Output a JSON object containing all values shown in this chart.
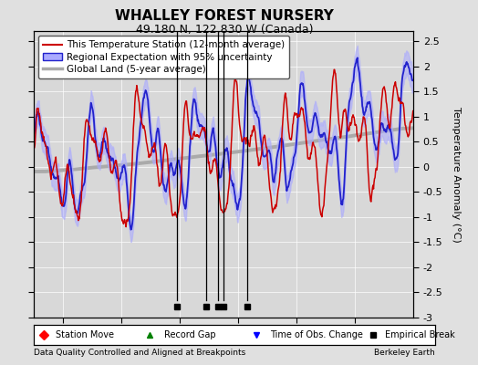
{
  "title": "WHALLEY FOREST NURSERY",
  "subtitle": "49.180 N, 122.830 W (Canada)",
  "ylabel": "Temperature Anomaly (°C)",
  "footer_left": "Data Quality Controlled and Aligned at Breakpoints",
  "footer_right": "Berkeley Earth",
  "ylim": [
    -3.0,
    2.7
  ],
  "yticks": [
    -3,
    -2.5,
    -2,
    -1.5,
    -1,
    -0.5,
    0,
    0.5,
    1,
    1.5,
    2,
    2.5
  ],
  "xlim": [
    1945,
    2010
  ],
  "xticks": [
    1950,
    1960,
    1970,
    1980,
    1990,
    2000
  ],
  "empirical_breaks": [
    1969.5,
    1974.5,
    1976.5,
    1977.5,
    1981.5
  ],
  "bg_color": "#e0e0e0",
  "plot_bg_color": "#d8d8d8",
  "legend_items": [
    {
      "label": "This Temperature Station (12-month average)",
      "color": "#cc0000"
    },
    {
      "label": "Regional Expectation with 95% uncertainty",
      "color": "#2222cc"
    },
    {
      "label": "Global Land (5-year average)",
      "color": "#aaaaaa"
    }
  ]
}
